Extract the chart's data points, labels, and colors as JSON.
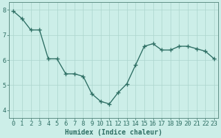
{
  "x": [
    0,
    1,
    2,
    3,
    4,
    5,
    6,
    7,
    8,
    9,
    10,
    11,
    12,
    13,
    14,
    15,
    16,
    17,
    18,
    19,
    20,
    21,
    22,
    23
  ],
  "y": [
    7.95,
    7.65,
    7.2,
    7.2,
    6.05,
    6.05,
    5.45,
    5.45,
    5.35,
    4.65,
    4.35,
    4.25,
    4.7,
    5.05,
    5.8,
    6.55,
    6.65,
    6.4,
    6.4,
    6.55,
    6.55,
    6.45,
    6.35,
    6.05
  ],
  "line_color": "#2d6e63",
  "marker": "+",
  "markersize": 4,
  "linewidth": 1.0,
  "bg_color": "#cceee8",
  "grid_color": "#aad4cc",
  "xlabel": "Humidex (Indice chaleur)",
  "xlabel_fontsize": 7,
  "tick_fontsize": 6.5,
  "yticks": [
    4,
    5,
    6,
    7,
    8
  ],
  "xticks": [
    0,
    1,
    2,
    3,
    4,
    5,
    6,
    7,
    8,
    9,
    10,
    11,
    12,
    13,
    14,
    15,
    16,
    17,
    18,
    19,
    20,
    21,
    22,
    23
  ],
  "ylim": [
    3.7,
    8.3
  ],
  "xlim": [
    -0.5,
    23.5
  ],
  "axis_color": "#2d6e63",
  "spine_color": "#5a8a80"
}
